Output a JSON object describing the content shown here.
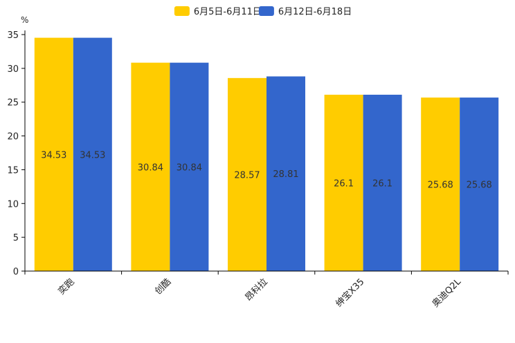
{
  "chart_data": {
    "type": "bar",
    "title": "",
    "xlabel": "",
    "ylabel": "%",
    "ylim": [
      0,
      35
    ],
    "yticks": [
      0,
      5,
      10,
      15,
      20,
      25,
      30,
      35
    ],
    "grid": false,
    "legend_position": "top-center",
    "categories": [
      "奕跑",
      "创酷",
      "昂科拉",
      "绅宝X35",
      "奥迪Q2L"
    ],
    "series": [
      {
        "name": "6月5日-6月11日",
        "color": "#FFCC00",
        "values": [
          34.53,
          30.84,
          28.57,
          26.1,
          25.68
        ]
      },
      {
        "name": "6月12日-6月18日",
        "color": "#3366CC",
        "values": [
          34.53,
          30.84,
          28.81,
          26.1,
          25.68
        ]
      }
    ]
  }
}
